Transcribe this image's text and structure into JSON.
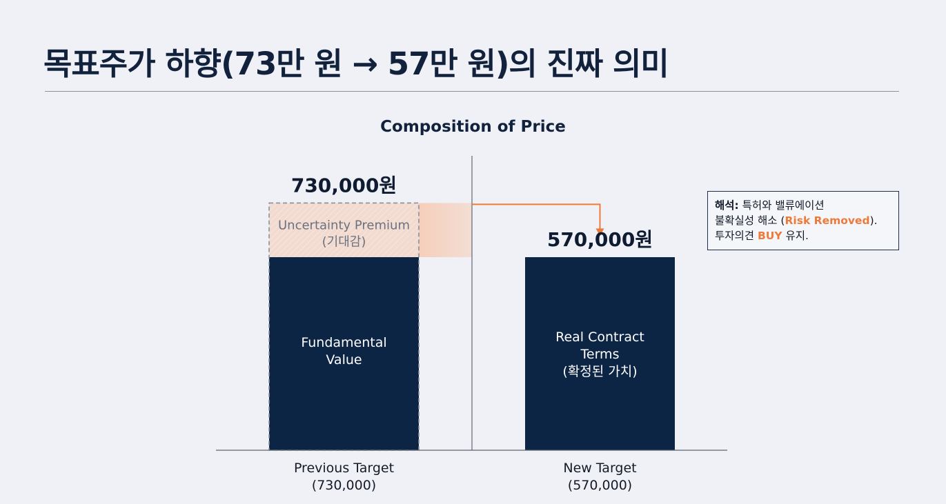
{
  "page": {
    "title": "목표주가 하향(73만 원 → 57만 원)의 진짜 의미"
  },
  "note": {
    "label": "해석:",
    "line1_rest": " 특허와 밸류에이션",
    "line2_pre": "불확실성 해소 (",
    "line2_highlight": "Risk Removed",
    "line2_post": ").",
    "line3_pre": "투자의견 ",
    "line3_highlight": "BUY",
    "line3_post": " 유지."
  },
  "colors": {
    "navy": "#0c2545",
    "accent": "#ee7a3a",
    "premium_fill": "#f6cdb8",
    "axis": "#5d6470"
  },
  "chart_data": {
    "type": "bar",
    "title": "Composition of Price",
    "categories": [
      [
        "Previous Target",
        "(730,000)"
      ],
      [
        "New Target",
        "(570,000)"
      ]
    ],
    "totals": [
      730000,
      570000
    ],
    "total_labels": [
      "730,000원",
      "570,000원"
    ],
    "series": [
      {
        "name": "Fundamental Value",
        "values": [
          570000,
          null
        ],
        "segment_labels": [
          [
            "Fundamental",
            "Value"
          ],
          null
        ]
      },
      {
        "name": "Uncertainty Premium",
        "values": [
          160000,
          null
        ],
        "segment_labels": [
          [
            "Uncertainty Premium",
            "(기대감)"
          ],
          null
        ]
      },
      {
        "name": "Real Contract Terms",
        "values": [
          null,
          570000
        ],
        "segment_labels": [
          null,
          [
            "Real Contract",
            "Terms",
            "(확정된 가치)"
          ]
        ]
      }
    ],
    "ylim": [
      0,
      800000
    ],
    "grid": false,
    "legend": "none"
  }
}
